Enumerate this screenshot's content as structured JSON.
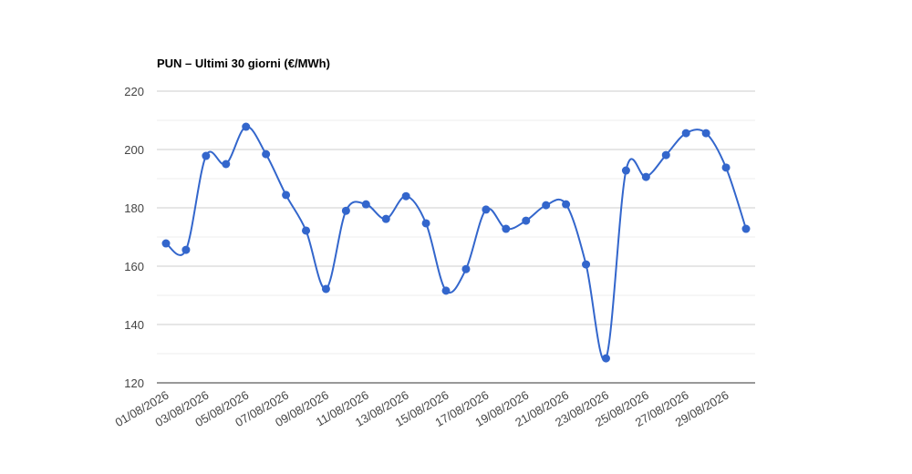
{
  "chart_data": {
    "type": "line",
    "title": "PUN – Ultimi 30 giorni (€/MWh)",
    "categories": [
      "01/08/2026",
      null,
      "03/08/2026",
      null,
      "05/08/2026",
      null,
      "07/08/2026",
      null,
      "09/08/2026",
      null,
      "11/08/2026",
      null,
      "13/08/2026",
      null,
      "15/08/2026",
      null,
      "17/08/2026",
      null,
      "19/08/2026",
      null,
      "21/08/2026",
      null,
      "23/08/2026",
      null,
      "25/08/2026",
      null,
      "27/08/2026",
      null,
      "29/08/2026",
      null
    ],
    "values": [
      167.8,
      165.6,
      197.8,
      195,
      207.8,
      198.4,
      184.4,
      172.2,
      152.2,
      179,
      181.2,
      176.2,
      184,
      174.7,
      151.6,
      159,
      179.4,
      172.8,
      175.6,
      180.9,
      181.2,
      160.6,
      128.4,
      192.8,
      190.6,
      198.1,
      205.6,
      205.6,
      193.8,
      172.8
    ],
    "color": "#3366cc",
    "ylim": [
      120,
      220
    ],
    "yticks": [
      120,
      140,
      160,
      180,
      200,
      220
    ],
    "grid": true
  }
}
